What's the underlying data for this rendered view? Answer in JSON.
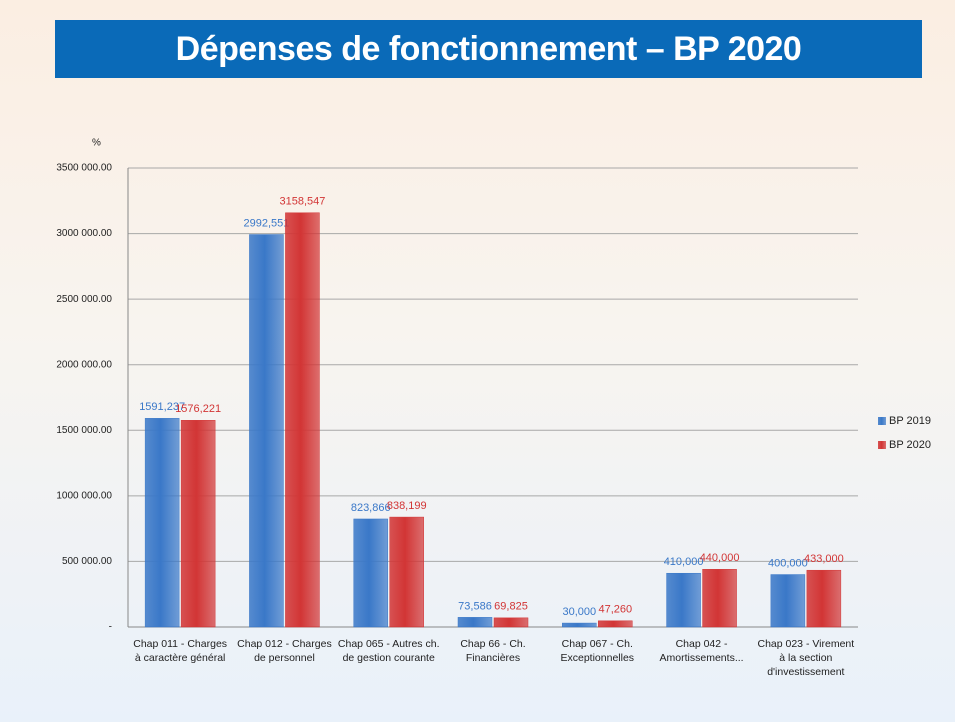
{
  "chart_data": {
    "type": "bar",
    "title": "Dépenses de fonctionnement – BP 2020",
    "ylabel": "%",
    "categories": [
      "Chap 011 - Charges à caractère général",
      "Chap 012 - Charges de personnel",
      "Chap 065 - Autres ch. de gestion courante",
      "Chap 66 - Ch. Financières",
      "Chap 067 - Ch. Exceptionnelles",
      "Chap 042 - Amortissements...",
      "Chap 023 - Virement à la section d'investissement"
    ],
    "series": [
      {
        "name": "BP 2019",
        "color": "#3a78c8",
        "values": [
          1591237,
          2992551,
          823866,
          73586,
          30000,
          410000,
          400000
        ],
        "value_labels": [
          "1591,237",
          "2992,551",
          "823,866",
          "73,586",
          "30,000",
          "410,000",
          "400,000"
        ]
      },
      {
        "name": "BP 2020",
        "color": "#d23535",
        "values": [
          1576221,
          3158547,
          838199,
          69825,
          47260,
          440000,
          433000
        ],
        "value_labels": [
          "1576,221",
          "3158,547",
          "838,199",
          "69,825",
          "47,260",
          "440,000",
          "433,000"
        ]
      }
    ],
    "ylim": [
      0,
      3500000
    ],
    "yticks": [
      {
        "value": 0,
        "label": "-"
      },
      {
        "value": 500000,
        "label": "500 000.00"
      },
      {
        "value": 1000000,
        "label": "1000 000.00"
      },
      {
        "value": 1500000,
        "label": "1500 000.00"
      },
      {
        "value": 2000000,
        "label": "2000 000.00"
      },
      {
        "value": 2500000,
        "label": "2500 000.00"
      },
      {
        "value": 3000000,
        "label": "3000 000.00"
      },
      {
        "value": 3500000,
        "label": "3500 000.00"
      }
    ],
    "grid": true,
    "legend": "right"
  }
}
